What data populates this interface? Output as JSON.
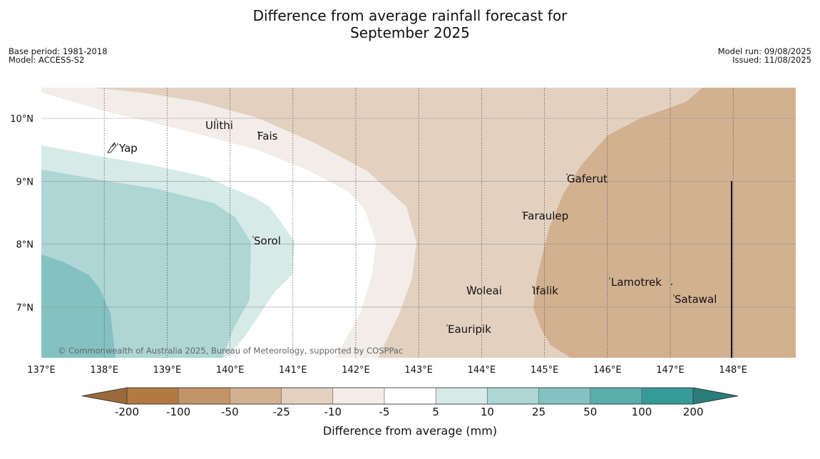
{
  "title_line1": "Difference from average rainfall forecast for",
  "title_line2": "September 2025",
  "base_period": "Base period: 1981-2018",
  "model": "Model: ACCESS-S2",
  "model_run": "Model run: 09/08/2025",
  "issued": "Issued: 11/08/2025",
  "copyright": "© Commonwealth of Australia 2025, Bureau of Meteorology, supported by COSPPac",
  "lon_ticks": [
    "137°E",
    "138°E",
    "139°E",
    "140°E",
    "141°E",
    "142°E",
    "143°E",
    "144°E",
    "145°E",
    "146°E",
    "147°E",
    "148°E"
  ],
  "lat_ticks": [
    "10°N",
    "9°N",
    "8°N",
    "7°N"
  ],
  "places": [
    {
      "name": "Ulithi"
    },
    {
      "name": "Fais"
    },
    {
      "name": "Yap"
    },
    {
      "name": "Gaferut"
    },
    {
      "name": "Faraulep"
    },
    {
      "name": "Sorol"
    },
    {
      "name": "Lamotrek"
    },
    {
      "name": "Woleai"
    },
    {
      "name": "Ifalik"
    },
    {
      "name": "Satawal"
    },
    {
      "name": "Eauripik"
    }
  ],
  "legend": {
    "label": "Difference from average (mm)",
    "ticks": [
      "-200",
      "-100",
      "-50",
      "-25",
      "-10",
      "-5",
      "5",
      "10",
      "25",
      "50",
      "100",
      "200"
    ],
    "colors": [
      "#9c6a3a",
      "#b07a40",
      "#c39468",
      "#d3b190",
      "#e3d1c0",
      "#f2ede8",
      "#ffffff",
      "#d6eae8",
      "#add6d5",
      "#84c2c1",
      "#5aaeac",
      "#369b98",
      "#2a7d7b"
    ]
  }
}
